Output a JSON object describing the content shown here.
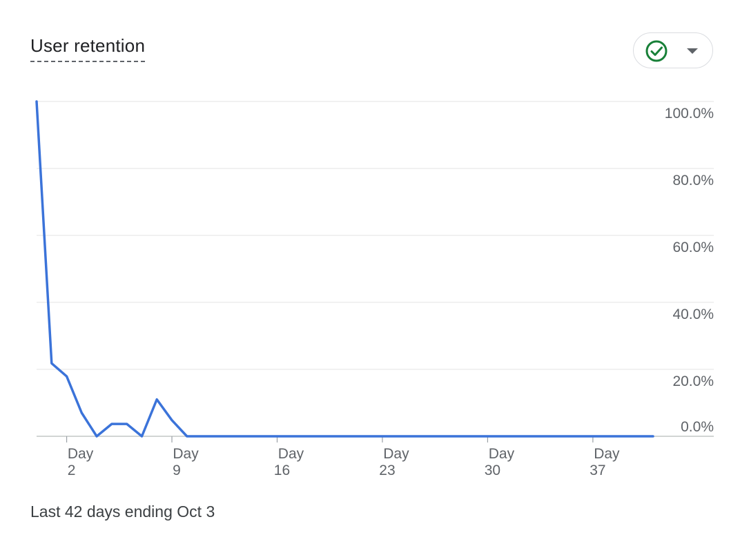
{
  "card": {
    "title": "User retention",
    "footer": "Last 42 days ending Oct 3"
  },
  "status": {
    "icon": "check-circle-icon",
    "icon_color": "#188038",
    "dropdown_icon": "caret-down-icon"
  },
  "chart_data": {
    "type": "line",
    "title": "User retention",
    "xlabel": "",
    "ylabel": "",
    "x": [
      0,
      1,
      2,
      3,
      4,
      5,
      6,
      7,
      8,
      9,
      10,
      11,
      12,
      13,
      14,
      15,
      16,
      17,
      18,
      19,
      20,
      21,
      22,
      23,
      24,
      25,
      26,
      27,
      28,
      29,
      30,
      31,
      32,
      33,
      34,
      35,
      36,
      37,
      38,
      39,
      40,
      41
    ],
    "series": [
      {
        "color": "#3b73d9",
        "values": [
          100.0,
          21.8,
          17.9,
          7.0,
          0.0,
          3.7,
          3.7,
          0.0,
          11.0,
          4.8,
          0.0,
          0.0,
          0.0,
          0.0,
          0.0,
          0.0,
          0.0,
          0.0,
          0.0,
          0.0,
          0.0,
          0.0,
          0.0,
          0.0,
          0.0,
          0.0,
          0.0,
          0.0,
          0.0,
          0.0,
          0.0,
          0.0,
          0.0,
          0.0,
          0.0,
          0.0,
          0.0,
          0.0,
          0.0,
          0.0,
          0.0,
          0.0
        ]
      }
    ],
    "x_ticks": [
      {
        "x": 2,
        "line1": "Day",
        "line2": "2"
      },
      {
        "x": 9,
        "line1": "Day",
        "line2": "9"
      },
      {
        "x": 16,
        "line1": "Day",
        "line2": "16"
      },
      {
        "x": 23,
        "line1": "Day",
        "line2": "23"
      },
      {
        "x": 30,
        "line1": "Day",
        "line2": "30"
      },
      {
        "x": 37,
        "line1": "Day",
        "line2": "37"
      }
    ],
    "y_ticks": [
      {
        "value": 100,
        "label": "100.0%"
      },
      {
        "value": 80,
        "label": "80.0%"
      },
      {
        "value": 60,
        "label": "60.0%"
      },
      {
        "value": 40,
        "label": "40.0%"
      },
      {
        "value": 20,
        "label": "20.0%"
      },
      {
        "value": 0,
        "label": "0.0%"
      }
    ],
    "ylim": [
      0,
      100
    ],
    "xlim": [
      0,
      41
    ],
    "y_axis_position": "right",
    "grid": true
  }
}
